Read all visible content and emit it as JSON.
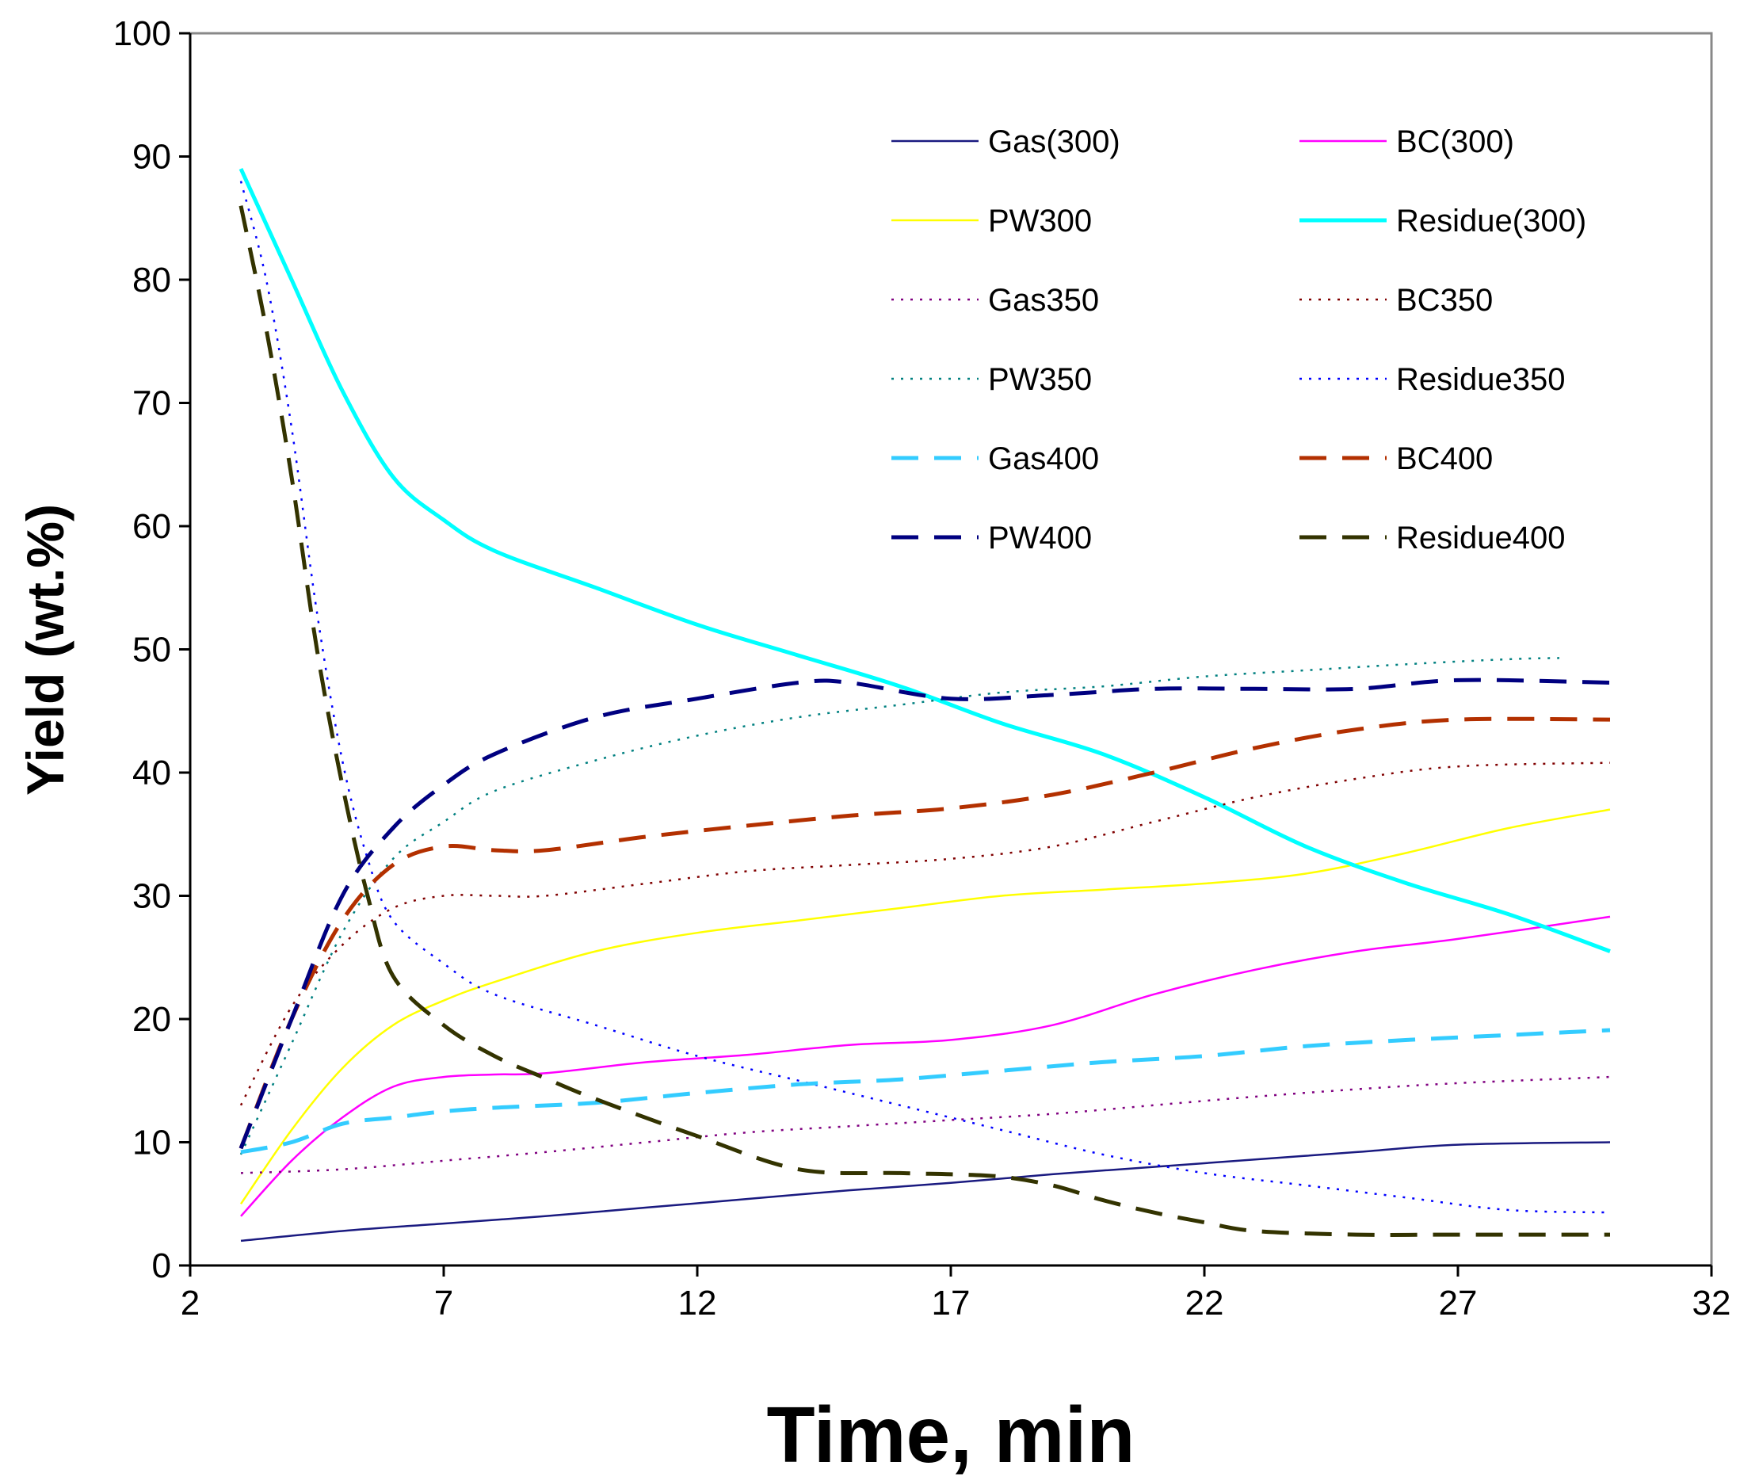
{
  "chart_data": {
    "type": "line",
    "title": "",
    "xlabel": "Time, min",
    "ylabel": "Yield (wt.%)",
    "xlim": [
      2,
      32
    ],
    "ylim": [
      0,
      100
    ],
    "xticks": [
      2,
      7,
      12,
      17,
      22,
      27,
      32
    ],
    "yticks": [
      0,
      10,
      20,
      30,
      40,
      50,
      60,
      70,
      80,
      90,
      100
    ],
    "x_tick_labels": [
      "2",
      "7",
      "12",
      "17",
      "22",
      "27",
      "32"
    ],
    "y_tick_labels": [
      "0",
      "10",
      "20",
      "30",
      "40",
      "50",
      "60",
      "70",
      "80",
      "90",
      "100"
    ],
    "grid": false,
    "legend_position": "top-right",
    "series": [
      {
        "name": "Gas(300)",
        "color": "#1a1a80",
        "style": "solid",
        "weight": "thin",
        "x": [
          3,
          5,
          7,
          9,
          11,
          13,
          15,
          17,
          19,
          21,
          23,
          25,
          27,
          30
        ],
        "y": [
          2,
          2.8,
          3.4,
          4,
          4.7,
          5.4,
          6.1,
          6.7,
          7.4,
          8,
          8.6,
          9.2,
          9.8,
          10
        ]
      },
      {
        "name": "BC(300)",
        "color": "#ff00ff",
        "style": "solid",
        "weight": "thin",
        "x": [
          3,
          4,
          5,
          6,
          7,
          8,
          9,
          11,
          13,
          15,
          17,
          19,
          21,
          23,
          25,
          27,
          30
        ],
        "y": [
          4,
          8.5,
          12,
          14.5,
          15.3,
          15.5,
          15.6,
          16.5,
          17.1,
          17.9,
          18.3,
          19.5,
          22,
          24,
          25.5,
          26.5,
          28.3
        ]
      },
      {
        "name": "PW300",
        "color": "#ffff00",
        "style": "solid",
        "weight": "thin",
        "x": [
          3,
          4,
          5,
          6,
          7,
          8,
          10,
          12,
          14,
          16,
          18,
          20,
          22,
          24,
          26,
          28,
          30
        ],
        "y": [
          5,
          11,
          16,
          19.5,
          21.5,
          23,
          25.5,
          27,
          28,
          29,
          30,
          30.5,
          31,
          31.8,
          33.5,
          35.5,
          37
        ]
      },
      {
        "name": "Residue(300)",
        "color": "#00ffff",
        "style": "solid",
        "weight": "thick",
        "x": [
          3,
          4,
          5,
          6,
          7,
          8,
          10,
          12,
          14,
          16,
          18,
          20,
          22,
          24,
          26,
          28,
          30
        ],
        "y": [
          89,
          80,
          71,
          64,
          60.5,
          58,
          55,
          52,
          49.5,
          47,
          44,
          41.5,
          38,
          34,
          31,
          28.5,
          25.5
        ]
      },
      {
        "name": "Gas350",
        "color": "#800080",
        "style": "dot",
        "weight": "thin",
        "x": [
          3,
          5,
          7,
          9,
          11,
          13,
          15,
          17,
          19,
          21,
          23,
          25,
          27,
          30
        ],
        "y": [
          7.5,
          7.8,
          8.5,
          9.2,
          10,
          10.8,
          11.3,
          11.8,
          12.3,
          13,
          13.7,
          14.3,
          14.8,
          15.3
        ]
      },
      {
        "name": "BC350",
        "color": "#800000",
        "style": "dot",
        "weight": "thin",
        "x": [
          3,
          4,
          5,
          6,
          7,
          8,
          9,
          11,
          13,
          15,
          17,
          19,
          21,
          23,
          25,
          27,
          30
        ],
        "y": [
          13,
          21,
          26,
          29,
          30,
          30,
          30,
          31,
          32,
          32.5,
          33,
          34,
          36,
          38,
          39.5,
          40.5,
          40.8
        ]
      },
      {
        "name": "PW350",
        "color": "#008080",
        "style": "dot",
        "weight": "thin",
        "x": [
          3,
          4,
          5,
          6,
          7,
          8,
          10,
          12,
          14,
          16,
          18,
          20,
          22,
          24,
          26,
          28,
          29
        ],
        "y": [
          9,
          18,
          27,
          33,
          36,
          38.5,
          41,
          43,
          44.5,
          45.5,
          46.5,
          47,
          47.8,
          48.3,
          48.8,
          49.2,
          49.3
        ]
      },
      {
        "name": "Residue350",
        "color": "#0000ff",
        "style": "dot",
        "weight": "thin",
        "x": [
          3,
          3.5,
          4,
          4.5,
          5,
          5.5,
          6,
          7,
          8,
          10,
          12,
          14,
          16,
          18,
          20,
          22,
          24,
          26,
          28,
          30
        ],
        "y": [
          88,
          80,
          68,
          53,
          41,
          33,
          28,
          24.5,
          22,
          19.5,
          17,
          15,
          13,
          11,
          9,
          7.5,
          6.5,
          5.5,
          4.5,
          4.3
        ]
      },
      {
        "name": "Gas400",
        "color": "#33ccff",
        "style": "dash",
        "weight": "thick",
        "x": [
          3,
          4,
          5,
          6,
          7,
          8,
          10,
          12,
          14,
          16,
          18,
          20,
          22,
          24,
          26,
          28,
          30
        ],
        "y": [
          9.2,
          10,
          11.5,
          12,
          12.5,
          12.8,
          13.2,
          14,
          14.7,
          15.1,
          15.8,
          16.5,
          17,
          17.8,
          18.3,
          18.7,
          19.1
        ]
      },
      {
        "name": "BC400",
        "color": "#b33000",
        "style": "dash",
        "weight": "thick",
        "x": [
          3,
          4,
          5,
          6,
          7,
          8,
          9,
          11,
          13,
          15,
          17,
          19,
          21,
          23,
          25,
          27,
          30
        ],
        "y": [
          9.5,
          20,
          28,
          32.5,
          34,
          33.7,
          33.7,
          34.8,
          35.7,
          36.5,
          37.1,
          38.2,
          40,
          42,
          43.5,
          44.3,
          44.3
        ]
      },
      {
        "name": "PW400",
        "color": "#000080",
        "style": "dash",
        "weight": "thick",
        "x": [
          3,
          4,
          5,
          6,
          7,
          8,
          10,
          12,
          14,
          15,
          17,
          19,
          21,
          23,
          25,
          27,
          30
        ],
        "y": [
          9.5,
          20,
          30,
          35.5,
          39,
          41.5,
          44.5,
          46,
          47.3,
          47.3,
          46,
          46.3,
          46.8,
          46.8,
          46.8,
          47.5,
          47.3
        ]
      },
      {
        "name": "Residue400",
        "color": "#333300",
        "style": "dash",
        "weight": "thick",
        "x": [
          3,
          3.5,
          4,
          4.5,
          5,
          5.5,
          6,
          7,
          8,
          9,
          10,
          12,
          14,
          16,
          17,
          18,
          19,
          20,
          21,
          22,
          23,
          25,
          27,
          30
        ],
        "y": [
          86,
          76,
          64,
          50,
          39,
          30,
          23.5,
          19.5,
          17,
          15.2,
          13.5,
          10.5,
          7.8,
          7.5,
          7.4,
          7.2,
          6.5,
          5.3,
          4.3,
          3.5,
          2.8,
          2.5,
          2.5,
          2.5
        ]
      }
    ]
  }
}
